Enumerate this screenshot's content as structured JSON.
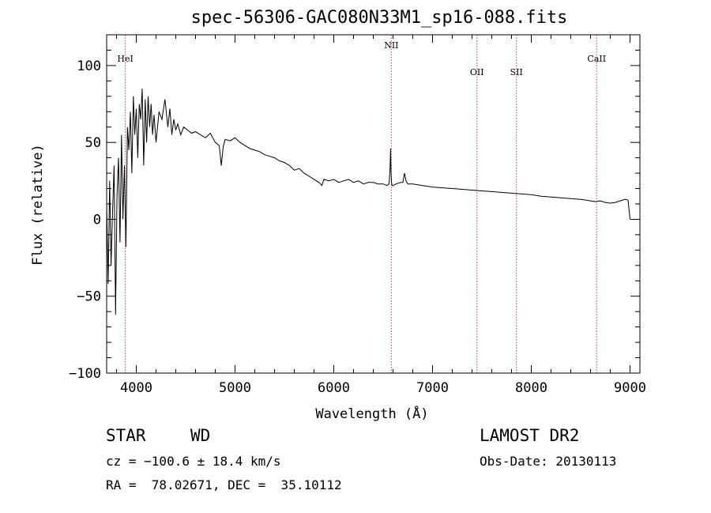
{
  "chart_data": {
    "type": "line",
    "title": "spec-56306-GAC080N33M1_sp16-088.fits",
    "xlabel": "Wavelength (Å)",
    "ylabel": "Flux (relative)",
    "xlim": [
      3700,
      9100
    ],
    "ylim": [
      -100,
      120
    ],
    "xticks": [
      "4000",
      "5000",
      "6000",
      "7000",
      "8000",
      "9000"
    ],
    "yticks": [
      "−100",
      "−50",
      "0",
      "50",
      "100"
    ],
    "xtick_values": [
      4000,
      5000,
      6000,
      7000,
      8000,
      9000
    ],
    "ytick_values": [
      -100,
      -50,
      0,
      50,
      100
    ],
    "grid": false,
    "series": [
      {
        "x": [
          3700,
          3715,
          3730,
          3745,
          3760,
          3775,
          3790,
          3805,
          3820,
          3835,
          3850,
          3865,
          3880,
          3895,
          3910,
          3925,
          3940,
          3955,
          3970,
          3985,
          4000,
          4015,
          4030,
          4045,
          4060,
          4075,
          4090,
          4105,
          4120,
          4135,
          4150,
          4165,
          4180,
          4200,
          4230,
          4260,
          4290,
          4320,
          4340,
          4360,
          4380,
          4400,
          4420,
          4450,
          4480,
          4520,
          4560,
          4600,
          4650,
          4700,
          4750,
          4800,
          4840,
          4861,
          4880,
          4900,
          4950,
          5000,
          5050,
          5100,
          5150,
          5200,
          5250,
          5300,
          5350,
          5400,
          5450,
          5500,
          5550,
          5600,
          5650,
          5700,
          5750,
          5800,
          5850,
          5880,
          5900,
          5950,
          6000,
          6050,
          6100,
          6150,
          6200,
          6250,
          6300,
          6350,
          6400,
          6450,
          6500,
          6540,
          6560,
          6570,
          6575,
          6580,
          6585,
          6590,
          6600,
          6630,
          6680,
          6700,
          6716,
          6731,
          6750,
          6800,
          6900,
          7000,
          7100,
          7200,
          7300,
          7400,
          7500,
          7600,
          7700,
          7800,
          7900,
          8000,
          8100,
          8200,
          8300,
          8400,
          8500,
          8550,
          8600,
          8650,
          8700,
          8750,
          8800,
          8850,
          8900,
          8950,
          8980,
          9000
        ],
        "y": [
          10,
          -42,
          25,
          -30,
          5,
          35,
          -62,
          15,
          40,
          -15,
          55,
          0,
          35,
          -18,
          60,
          45,
          70,
          30,
          80,
          55,
          72,
          40,
          75,
          65,
          85,
          35,
          78,
          50,
          80,
          60,
          75,
          55,
          68,
          50,
          70,
          65,
          78,
          60,
          72,
          55,
          65,
          58,
          62,
          55,
          60,
          58,
          56,
          57,
          55,
          53,
          56,
          50,
          48,
          35,
          47,
          52,
          51,
          53,
          50,
          48,
          46,
          45,
          44,
          42,
          41,
          40,
          38,
          37,
          35,
          32,
          33,
          30,
          28,
          26,
          24,
          22,
          26,
          25,
          26,
          24,
          25,
          26,
          24,
          25,
          23,
          24,
          24,
          23,
          23,
          22,
          23,
          34,
          46,
          30,
          24,
          22,
          22,
          23,
          24,
          24,
          30,
          25,
          23,
          23,
          22,
          21,
          20.5,
          20,
          19.5,
          19,
          18.5,
          18,
          17.5,
          17,
          16.5,
          16,
          15,
          14.5,
          14,
          13.5,
          13,
          12.5,
          12,
          11.5,
          12,
          11,
          10.5,
          11,
          12,
          13,
          12.5,
          0
        ]
      }
    ],
    "lines": [
      {
        "label": "HeI",
        "x": 3889
      },
      {
        "label": "NII",
        "x": 6583
      },
      {
        "label": "OII",
        "x": 7450
      },
      {
        "label": "SII",
        "x": 7850
      },
      {
        "label": "CaII",
        "x": 8662
      }
    ],
    "line_color": "#d04040"
  },
  "footer": {
    "object_class": "STAR",
    "subclass": "WD",
    "cz": "cz = −100.6 ± 18.4 km/s",
    "radec": "RA =  78.02671, DEC =  35.10112",
    "survey": "LAMOST DR2",
    "obs_date": "Obs-Date: 20130113"
  }
}
